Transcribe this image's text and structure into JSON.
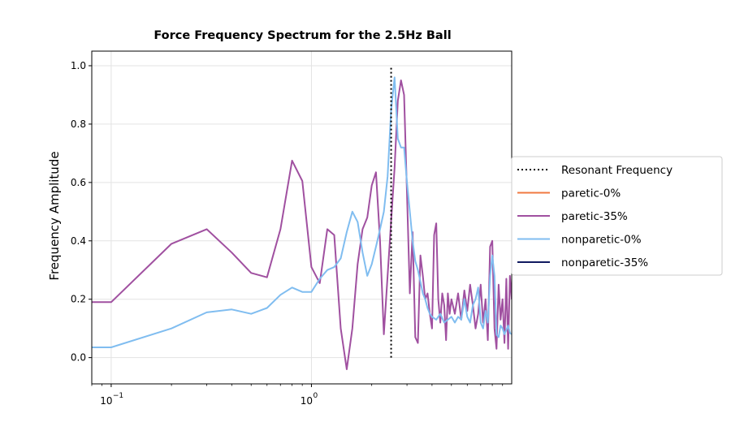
{
  "chart_data": {
    "type": "line",
    "title": "Force Frequency Spectrum for the 2.5Hz Ball",
    "xlabel": "",
    "ylabel": "Frequency Amplitude",
    "xscale": "log",
    "xlim": [
      0.08,
      10
    ],
    "ylim": [
      -0.09,
      1.05
    ],
    "grid": true,
    "legend_position": "right",
    "x_ticks": [
      {
        "value": 0.1,
        "label": "10",
        "exp": "−1"
      },
      {
        "value": 1,
        "label": "10",
        "exp": "0"
      }
    ],
    "y_ticks": [
      {
        "value": 0.0,
        "label": "0.0"
      },
      {
        "value": 0.2,
        "label": "0.2"
      },
      {
        "value": 0.4,
        "label": "0.4"
      },
      {
        "value": 0.6,
        "label": "0.6"
      },
      {
        "value": 0.8,
        "label": "0.8"
      },
      {
        "value": 1.0,
        "label": "1.0"
      }
    ],
    "resonant_frequency": {
      "name": "Resonant Frequency",
      "x": 2.5,
      "y_range": [
        0,
        1.0
      ],
      "color": "#000000",
      "style": "dotted"
    },
    "series": [
      {
        "name": "paretic-0%",
        "color": "#f07840",
        "x": [],
        "y": []
      },
      {
        "name": "paretic-35%",
        "color": "#a050a0",
        "x": [
          0.08,
          0.1,
          0.2,
          0.3,
          0.4,
          0.5,
          0.6,
          0.7,
          0.8,
          0.9,
          1.0,
          1.1,
          1.2,
          1.3,
          1.4,
          1.5,
          1.6,
          1.7,
          1.8,
          1.9,
          2.0,
          2.1,
          2.2,
          2.3,
          2.4,
          2.5,
          2.6,
          2.7,
          2.8,
          2.9,
          3.0,
          3.1,
          3.2,
          3.3,
          3.4,
          3.5,
          3.6,
          3.7,
          3.8,
          3.9,
          4.0,
          4.1,
          4.2,
          4.3,
          4.4,
          4.5,
          4.6,
          4.7,
          4.8,
          4.9,
          5.0,
          5.2,
          5.4,
          5.6,
          5.8,
          6.0,
          6.2,
          6.4,
          6.6,
          6.8,
          7.0,
          7.2,
          7.4,
          7.6,
          7.8,
          8.0,
          8.2,
          8.4,
          8.6,
          8.8,
          9.0,
          9.2,
          9.4,
          9.6,
          9.8,
          10.0
        ],
        "y": [
          0.19,
          0.19,
          0.39,
          0.44,
          0.36,
          0.29,
          0.275,
          0.44,
          0.675,
          0.605,
          0.31,
          0.255,
          0.44,
          0.42,
          0.1,
          -0.04,
          0.1,
          0.32,
          0.44,
          0.48,
          0.59,
          0.635,
          0.4,
          0.08,
          0.28,
          0.47,
          0.65,
          0.88,
          0.95,
          0.9,
          0.56,
          0.22,
          0.43,
          0.07,
          0.05,
          0.35,
          0.28,
          0.2,
          0.22,
          0.15,
          0.1,
          0.42,
          0.46,
          0.2,
          0.12,
          0.22,
          0.18,
          0.06,
          0.22,
          0.15,
          0.2,
          0.15,
          0.22,
          0.13,
          0.23,
          0.16,
          0.25,
          0.18,
          0.1,
          0.15,
          0.25,
          0.12,
          0.2,
          0.06,
          0.38,
          0.4,
          0.1,
          0.03,
          0.25,
          0.13,
          0.2,
          0.05,
          0.27,
          0.03,
          0.28,
          0.2
        ]
      },
      {
        "name": "nonparetic-0%",
        "color": "#80bdf0",
        "x": [
          0.08,
          0.1,
          0.2,
          0.3,
          0.4,
          0.5,
          0.6,
          0.7,
          0.8,
          0.9,
          1.0,
          1.1,
          1.2,
          1.3,
          1.4,
          1.5,
          1.6,
          1.7,
          1.8,
          1.9,
          2.0,
          2.1,
          2.2,
          2.3,
          2.4,
          2.5,
          2.6,
          2.7,
          2.8,
          2.9,
          3.0,
          3.1,
          3.2,
          3.3,
          3.4,
          3.5,
          3.6,
          3.7,
          3.8,
          3.9,
          4.0,
          4.2,
          4.4,
          4.6,
          4.8,
          5.0,
          5.2,
          5.4,
          5.6,
          5.8,
          6.0,
          6.2,
          6.4,
          6.6,
          6.8,
          7.0,
          7.2,
          7.4,
          7.6,
          7.8,
          8.0,
          8.2,
          8.4,
          8.6,
          8.8,
          9.0,
          9.2,
          9.4,
          9.6,
          9.8,
          10.0
        ],
        "y": [
          0.035,
          0.035,
          0.1,
          0.155,
          0.165,
          0.15,
          0.17,
          0.215,
          0.24,
          0.225,
          0.225,
          0.27,
          0.3,
          0.31,
          0.34,
          0.43,
          0.5,
          0.465,
          0.36,
          0.28,
          0.32,
          0.38,
          0.44,
          0.5,
          0.62,
          0.85,
          0.96,
          0.75,
          0.72,
          0.72,
          0.6,
          0.5,
          0.4,
          0.33,
          0.3,
          0.26,
          0.22,
          0.2,
          0.17,
          0.15,
          0.14,
          0.13,
          0.15,
          0.12,
          0.13,
          0.14,
          0.12,
          0.14,
          0.13,
          0.2,
          0.14,
          0.12,
          0.18,
          0.2,
          0.24,
          0.12,
          0.1,
          0.16,
          0.12,
          0.28,
          0.35,
          0.28,
          0.08,
          0.07,
          0.11,
          0.1,
          0.08,
          0.095,
          0.11,
          0.085,
          0.08
        ]
      },
      {
        "name": "nonparetic-35%",
        "color": "#101a60",
        "x": [],
        "y": []
      }
    ],
    "legend": [
      {
        "label": "Resonant Frequency",
        "color": "#000000",
        "style": "dotted"
      },
      {
        "label": "paretic-0%",
        "color": "#f07840",
        "style": "solid"
      },
      {
        "label": "paretic-35%",
        "color": "#a050a0",
        "style": "solid"
      },
      {
        "label": "nonparetic-0%",
        "color": "#80bdf0",
        "style": "solid"
      },
      {
        "label": "nonparetic-35%",
        "color": "#101a60",
        "style": "solid"
      }
    ]
  }
}
